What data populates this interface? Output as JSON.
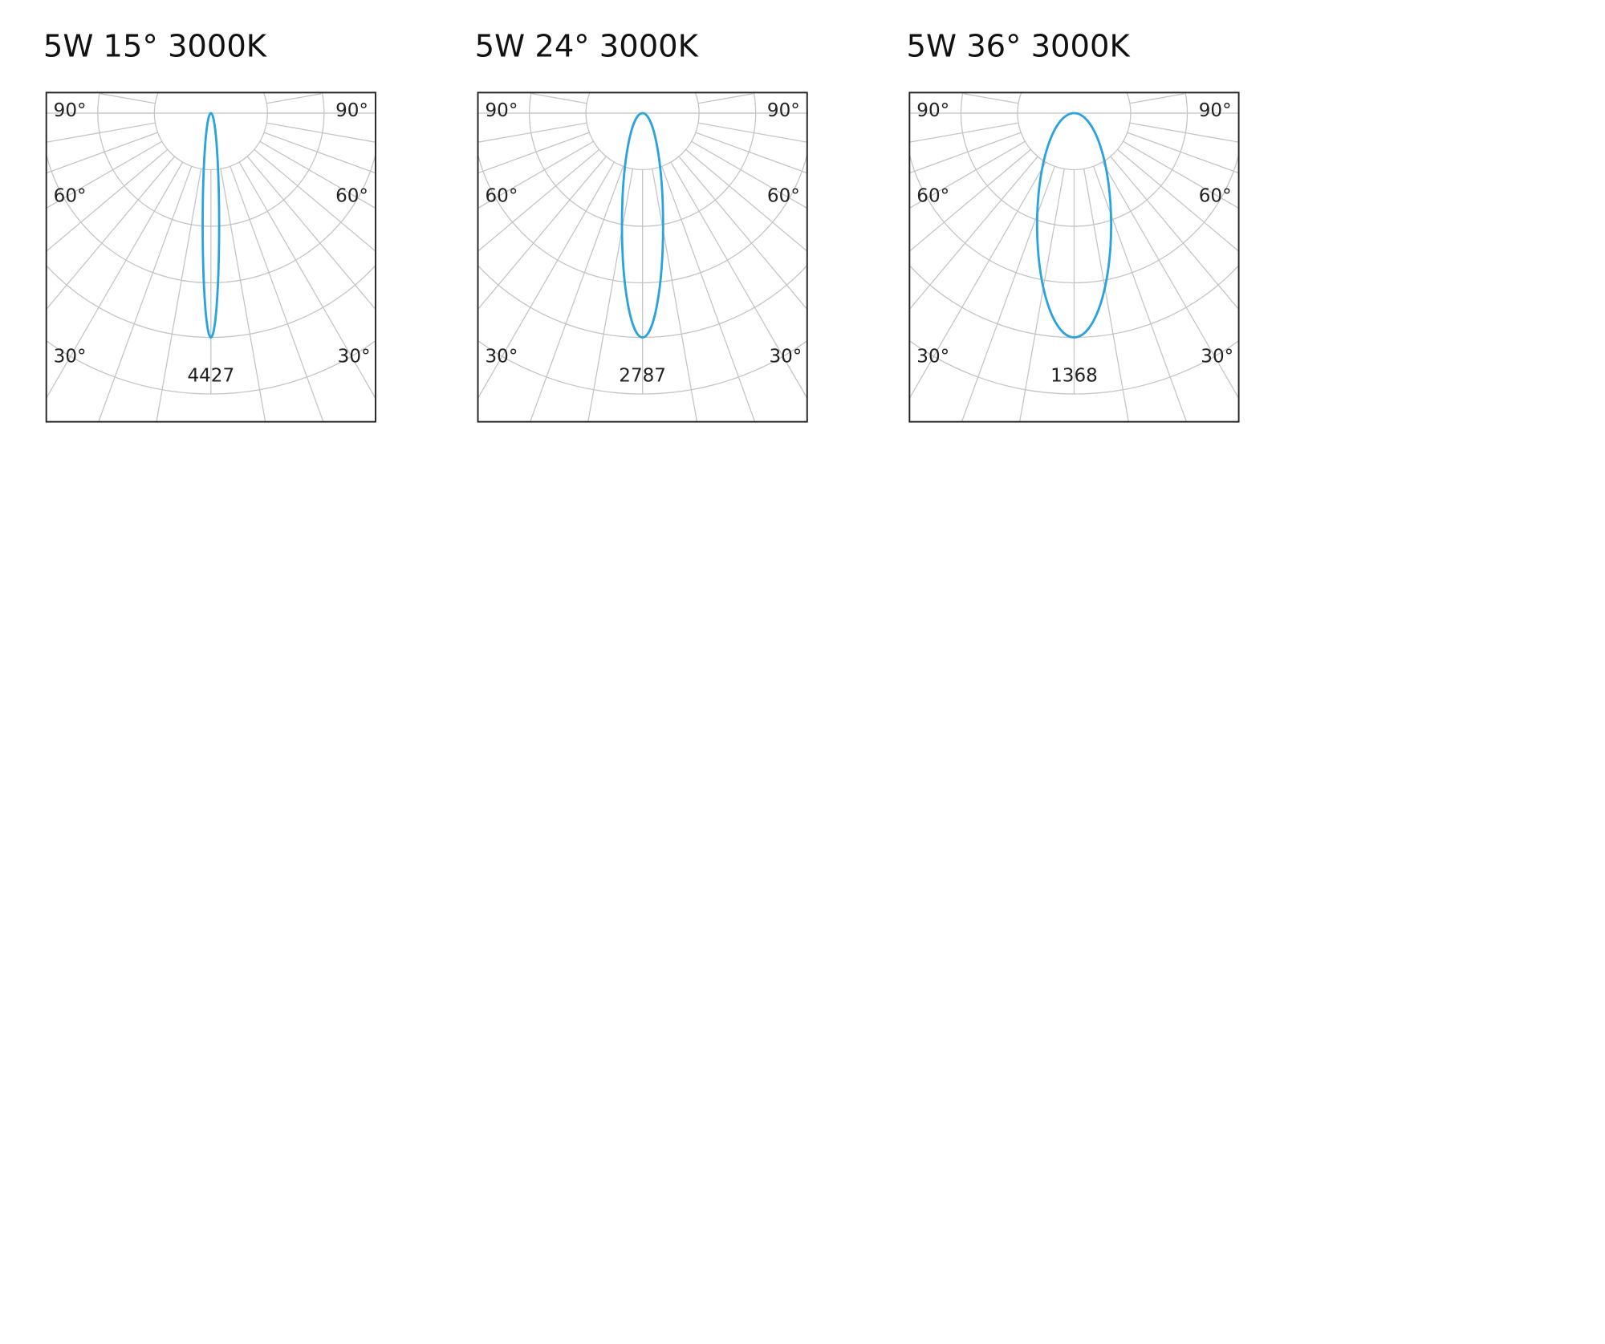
{
  "panels": [
    {
      "title": "5W 15° 3000K",
      "angle_labels": [
        "90°",
        "90°",
        "60°",
        "60°",
        "30°",
        "30°"
      ],
      "peak": "4427"
    },
    {
      "title": "5W 24° 3000K",
      "angle_labels": [
        "90°",
        "90°",
        "60°",
        "60°",
        "30°",
        "30°"
      ],
      "peak": "2787"
    },
    {
      "title": "5W 36° 3000K",
      "angle_labels": [
        "90°",
        "90°",
        "60°",
        "60°",
        "30°",
        "30°"
      ],
      "peak": "1368"
    }
  ]
}
